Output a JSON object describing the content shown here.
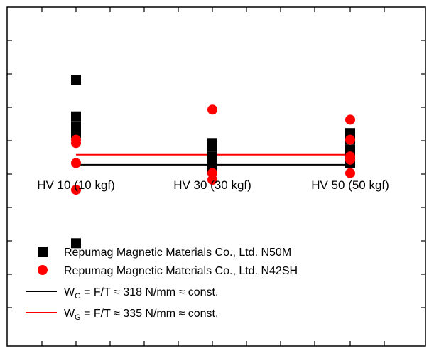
{
  "chart_data": {
    "type": "scatter",
    "title": "",
    "xlabel": "",
    "ylabel": "",
    "categories": [
      "HV 10 (10 kgf)",
      "HV 30 (30 kgf)",
      "HV 50 (50 kgf)"
    ],
    "ylim": [
      0,
      10
    ],
    "grid": false,
    "legend_position": "bottom",
    "series": [
      {
        "name": "Repumag Magnetic Materials Co., Ltd. N50M",
        "marker": "square",
        "color": "#000000",
        "points": [
          {
            "category": 0,
            "y": 7.9
          },
          {
            "category": 0,
            "y": 6.8
          },
          {
            "category": 0,
            "y": 6.5
          },
          {
            "category": 0,
            "y": 6.3
          },
          {
            "category": 0,
            "y": 3.0
          },
          {
            "category": 1,
            "y": 6.0
          },
          {
            "category": 1,
            "y": 5.9
          },
          {
            "category": 1,
            "y": 5.6
          },
          {
            "category": 1,
            "y": 5.4
          },
          {
            "category": 1,
            "y": 5.2
          },
          {
            "category": 2,
            "y": 6.3
          },
          {
            "category": 2,
            "y": 6.1
          },
          {
            "category": 2,
            "y": 5.8
          },
          {
            "category": 2,
            "y": 5.6
          },
          {
            "category": 2,
            "y": 5.4
          }
        ]
      },
      {
        "name": "Repumag Magnetic Materials Co., Ltd. N42SH",
        "marker": "circle",
        "color": "#ff0000",
        "points": [
          {
            "category": 0,
            "y": 6.1
          },
          {
            "category": 0,
            "y": 6.0
          },
          {
            "category": 0,
            "y": 5.4
          },
          {
            "category": 0,
            "y": 4.6
          },
          {
            "category": 1,
            "y": 7.0
          },
          {
            "category": 1,
            "y": 5.1
          },
          {
            "category": 1,
            "y": 4.9
          },
          {
            "category": 2,
            "y": 6.7
          },
          {
            "category": 2,
            "y": 6.1
          },
          {
            "category": 2,
            "y": 5.6
          },
          {
            "category": 2,
            "y": 5.5
          },
          {
            "category": 2,
            "y": 5.1
          }
        ]
      }
    ],
    "reference_lines": [
      {
        "y": 5.35,
        "color": "#000000",
        "label_main": "W",
        "label_sub": "G",
        "label_rest": " = F/T ≈ 318 N/mm ≈ const."
      },
      {
        "y": 5.65,
        "color": "#ff0000",
        "label_main": "W",
        "label_sub": "G",
        "label_rest": " = F/T ≈ 335 N/mm ≈ const."
      }
    ]
  }
}
